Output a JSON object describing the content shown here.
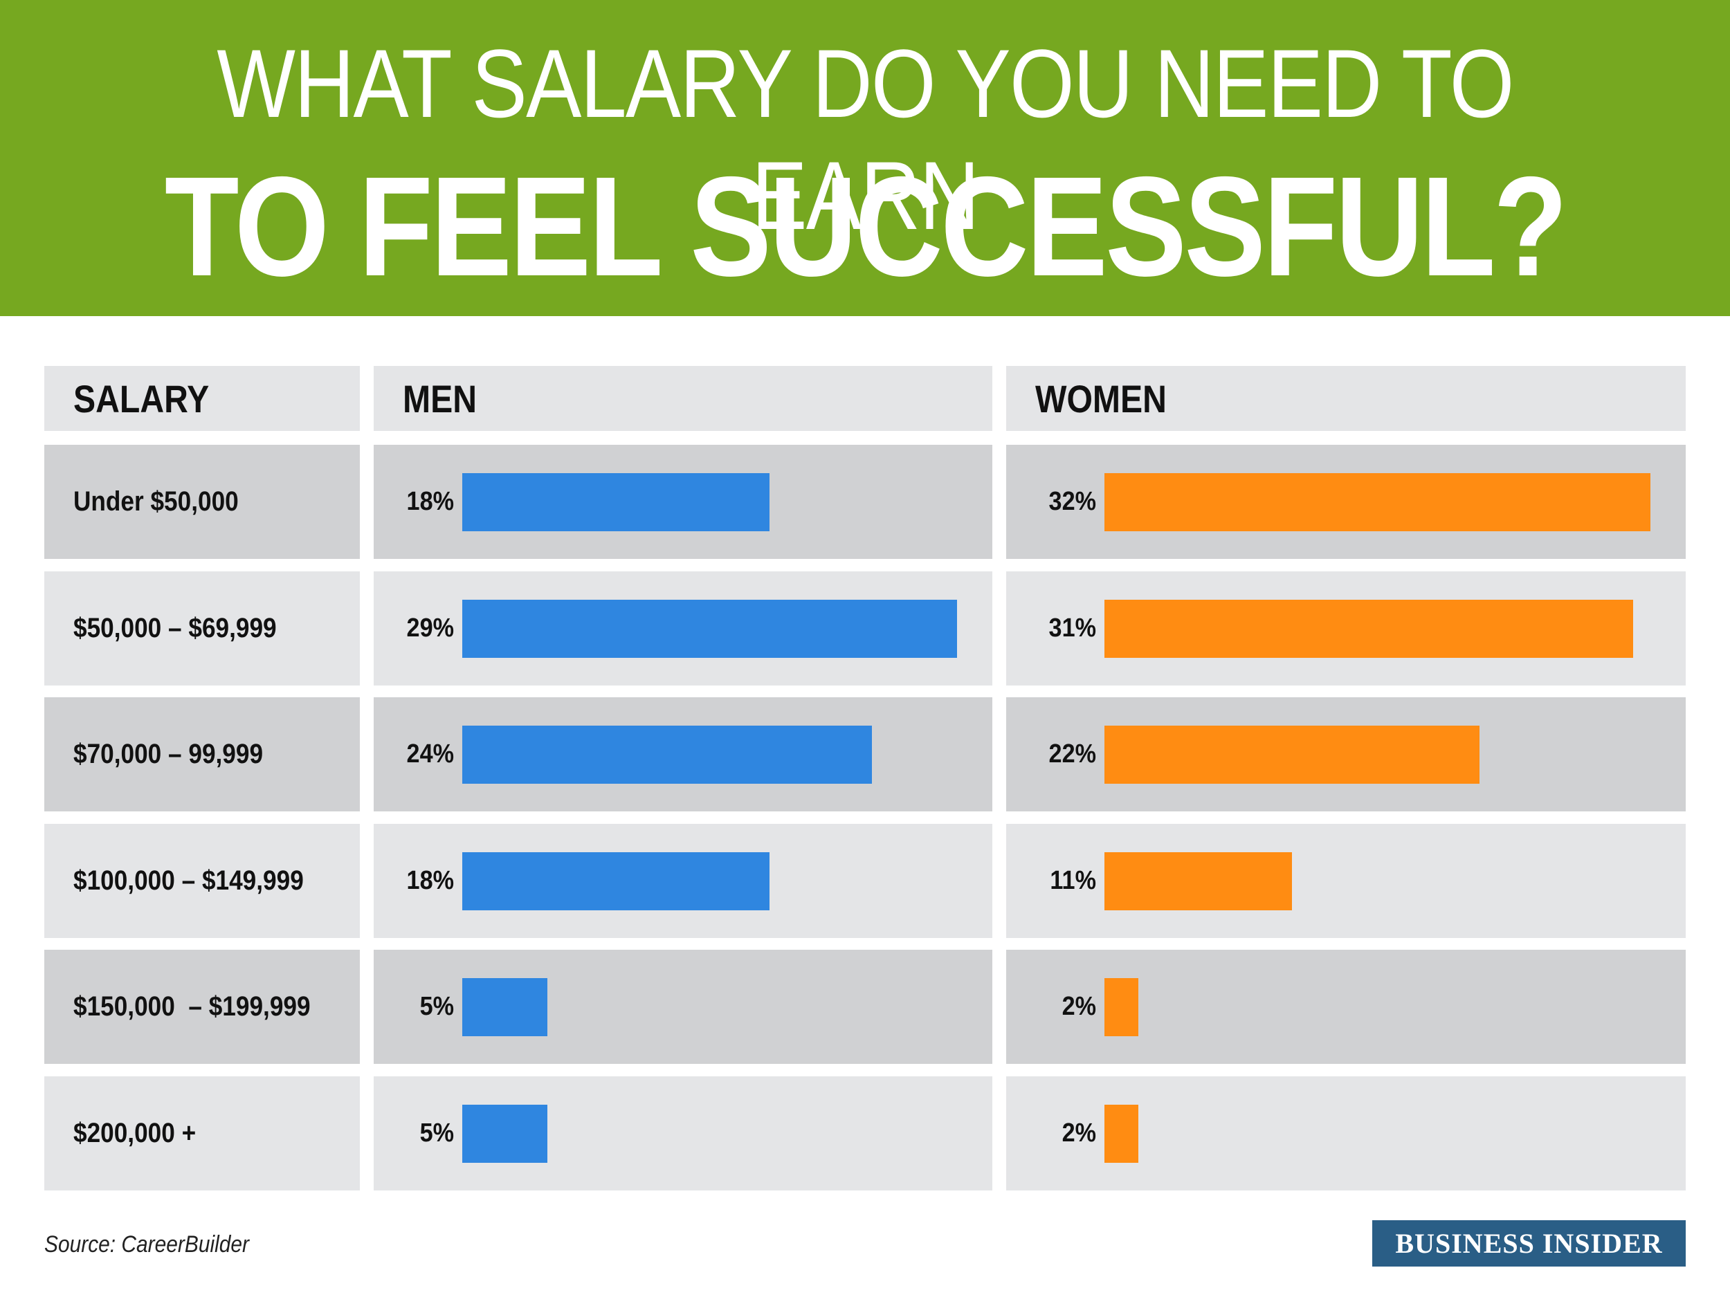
{
  "title": {
    "line1": "WHAT SALARY DO YOU NEED TO EARN",
    "line2": "TO FEEL SUCCESSFUL?"
  },
  "colors": {
    "header_green": "#76a820",
    "men_bar": "#2f86e0",
    "women_bar": "#ff8c12",
    "row_dark": "#d0d1d3",
    "row_light": "#e4e5e7",
    "brand_blue": "#2a5e86"
  },
  "chart_data": {
    "type": "bar",
    "orientation": "horizontal",
    "column_headers": [
      "SALARY",
      "MEN",
      "WOMEN"
    ],
    "categories": [
      "Under $50,000",
      "$50,000 – $69,999",
      "$70,000 – 99,999",
      "$100,000 – $149,999",
      "$150,000  – $199,999",
      "$200,000 +"
    ],
    "series": [
      {
        "name": "MEN",
        "values": [
          18,
          29,
          24,
          18,
          5,
          5
        ],
        "labels": [
          "18%",
          "29%",
          "24%",
          "18%",
          "5%",
          "5%"
        ]
      },
      {
        "name": "WOMEN",
        "values": [
          32,
          31,
          22,
          11,
          2,
          2
        ],
        "labels": [
          "32%",
          "31%",
          "22%",
          "11%",
          "2%",
          "2%"
        ]
      }
    ],
    "unit": "%",
    "xlim": [
      0,
      32
    ]
  },
  "footer": {
    "source": "Source: CareerBuilder",
    "brand": "BUSINESS INSIDER"
  }
}
